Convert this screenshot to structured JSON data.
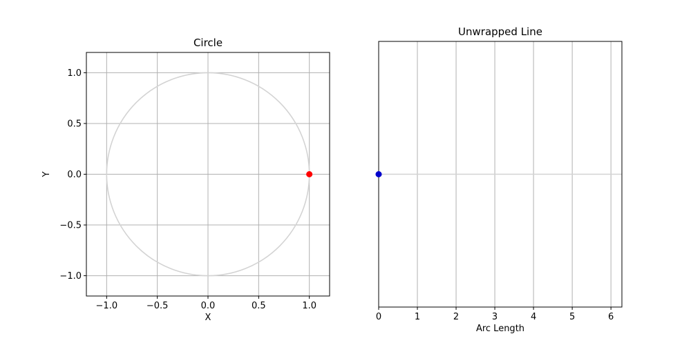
{
  "chart_data": [
    {
      "type": "line",
      "title": "Circle",
      "xlabel": "X",
      "ylabel": "Y",
      "xlim": [
        -1.2,
        1.2
      ],
      "ylim": [
        -1.2,
        1.2
      ],
      "grid": true,
      "xticks": [
        -1.0,
        -0.5,
        0.0,
        0.5,
        1.0
      ],
      "yticks": [
        -1.0,
        -0.5,
        0.0,
        0.5,
        1.0
      ],
      "xtick_labels": [
        "−1.0",
        "−0.5",
        "0.0",
        "0.5",
        "1.0"
      ],
      "ytick_labels": [
        "−1.0",
        "−0.5",
        "0.0",
        "0.5",
        "1.0"
      ],
      "series": [
        {
          "kind": "circle",
          "center": [
            0,
            0
          ],
          "radius": 1.0,
          "color": "#d3d3d3"
        }
      ],
      "points": [
        {
          "x": 1.0,
          "y": 0.0,
          "color": "#ff0000"
        }
      ]
    },
    {
      "type": "line",
      "title": "Unwrapped Line",
      "xlabel": "Arc Length",
      "ylabel": "",
      "xlim": [
        0,
        6.283
      ],
      "ylim": [
        -1,
        1
      ],
      "grid": true,
      "xticks": [
        0,
        1,
        2,
        3,
        4,
        5,
        6
      ],
      "xtick_labels": [
        "0",
        "1",
        "2",
        "3",
        "4",
        "5",
        "6"
      ],
      "yticks": [],
      "series": [
        {
          "kind": "hline",
          "y": 0.0,
          "x": [
            0,
            6.283
          ],
          "color": "#d3d3d3"
        }
      ],
      "points": [
        {
          "x": 0.0,
          "y": 0.0,
          "color": "#0000cc"
        }
      ]
    }
  ]
}
